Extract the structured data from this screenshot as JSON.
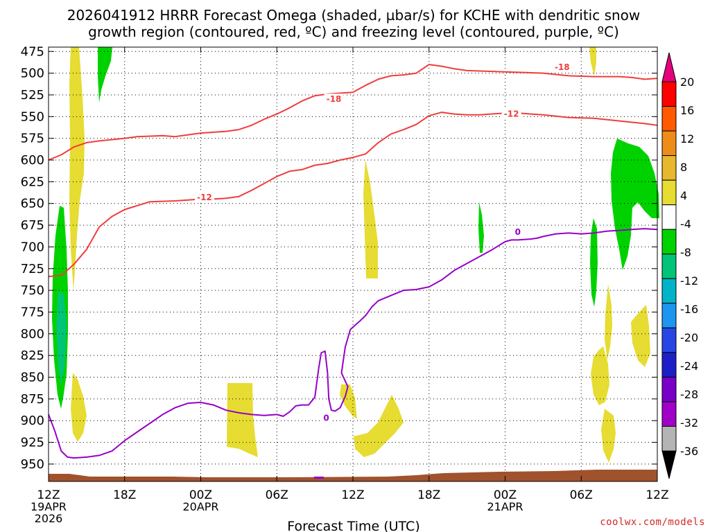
{
  "chart_data": {
    "type": "heatmap",
    "title_line1": "2026041912 HRRR Forecast Omega (shaded, µbar/s) for KCHE with dendritic snow",
    "title_line2": "growth region (contoured, red, ºC) and freezing level (contoured, purple, ºC)",
    "xlabel": "Forecast Time (UTC)",
    "credit": "coolwx.com/models",
    "x_range_hours": [
      0,
      48
    ],
    "y_range_hpa": [
      470,
      970
    ],
    "grid": true,
    "y_ticks": [
      475,
      500,
      525,
      550,
      575,
      600,
      625,
      650,
      675,
      700,
      725,
      750,
      775,
      800,
      825,
      850,
      875,
      900,
      925,
      950
    ],
    "y_tick_labels": [
      "475",
      "500",
      "525",
      "550",
      "575",
      "600",
      "625",
      "650",
      "675",
      "700",
      "725",
      "750",
      "775",
      "800",
      "825",
      "850",
      "875",
      "900",
      "925",
      "950"
    ],
    "x_ticks": [
      {
        "hour": 0,
        "label": "12Z",
        "sub1": "19APR",
        "sub2": "2026"
      },
      {
        "hour": 6,
        "label": "18Z",
        "sub1": "",
        "sub2": ""
      },
      {
        "hour": 12,
        "label": "00Z",
        "sub1": "20APR",
        "sub2": ""
      },
      {
        "hour": 18,
        "label": "06Z",
        "sub1": "",
        "sub2": ""
      },
      {
        "hour": 24,
        "label": "12Z",
        "sub1": "",
        "sub2": ""
      },
      {
        "hour": 30,
        "label": "18Z",
        "sub1": "",
        "sub2": ""
      },
      {
        "hour": 36,
        "label": "00Z",
        "sub1": "21APR",
        "sub2": ""
      },
      {
        "hour": 42,
        "label": "06Z",
        "sub1": "",
        "sub2": ""
      },
      {
        "hour": 48,
        "label": "12Z",
        "sub1": "",
        "sub2": ""
      }
    ],
    "colorbar": {
      "labels": [
        "20",
        "16",
        "12",
        "8",
        "4",
        "-4",
        "-8",
        "-12",
        "-16",
        "-20",
        "-24",
        "-28",
        "-32",
        "-36"
      ],
      "colors": [
        "#ff0000",
        "#ff5a00",
        "#ee8c1a",
        "#e8b82c",
        "#e6dc32",
        "#ffffff",
        "#00d200",
        "#00c478",
        "#00b4c8",
        "#1e96f0",
        "#2846e6",
        "#1e1ec8",
        "#7800c8",
        "#a000c8",
        "#b4b4b4"
      ],
      "top_color": "#e6007a",
      "bottom_color": "#000000"
    },
    "colors": {
      "dgz": "#f03c3c",
      "freezing": "#9600c8",
      "green": "#00d200",
      "teal": "#00c478",
      "yellow": "#e6dc32",
      "terrain": "#a0522d"
    },
    "contour_labels": [
      {
        "text": "-18",
        "hour": 22.5,
        "hpa": 530
      },
      {
        "text": "-18",
        "hour": 40.5,
        "hpa": 493
      },
      {
        "text": "-12",
        "hour": 12.3,
        "hpa": 643
      },
      {
        "text": "-12",
        "hour": 36.5,
        "hpa": 547
      },
      {
        "text": "0",
        "hour": 37.0,
        "hpa": 683
      },
      {
        "text": "0",
        "hour": 21.9,
        "hpa": 897
      }
    ],
    "series": [
      {
        "name": "-18",
        "color": "#f03c3c",
        "points": [
          [
            0,
            600
          ],
          [
            1,
            594
          ],
          [
            2,
            585
          ],
          [
            3,
            580
          ],
          [
            4,
            578
          ],
          [
            6,
            575
          ],
          [
            7,
            573
          ],
          [
            9,
            572
          ],
          [
            10,
            573
          ],
          [
            12,
            569
          ],
          [
            14,
            567
          ],
          [
            15,
            565
          ],
          [
            16,
            560
          ],
          [
            17,
            553
          ],
          [
            18,
            547
          ],
          [
            19,
            540
          ],
          [
            20,
            532
          ],
          [
            21,
            526
          ],
          [
            22,
            524
          ],
          [
            24,
            522
          ],
          [
            25,
            514
          ],
          [
            26,
            507
          ],
          [
            27,
            503
          ],
          [
            28,
            502
          ],
          [
            29,
            500
          ],
          [
            30,
            490
          ],
          [
            31,
            492
          ],
          [
            32,
            495
          ],
          [
            33,
            497
          ],
          [
            35,
            498
          ],
          [
            37,
            499
          ],
          [
            39,
            500
          ],
          [
            41,
            503
          ],
          [
            43,
            504
          ],
          [
            45,
            504
          ],
          [
            46,
            505
          ],
          [
            47,
            507
          ],
          [
            48,
            506
          ]
        ]
      },
      {
        "name": "-12",
        "color": "#f03c3c",
        "points": [
          [
            0,
            734
          ],
          [
            1,
            733
          ],
          [
            2,
            720
          ],
          [
            3,
            703
          ],
          [
            3.5,
            690
          ],
          [
            4,
            677
          ],
          [
            5,
            665
          ],
          [
            6,
            657
          ],
          [
            8,
            648
          ],
          [
            10,
            647
          ],
          [
            11,
            646
          ],
          [
            12,
            645
          ],
          [
            13,
            645
          ],
          [
            14,
            644
          ],
          [
            15,
            642
          ],
          [
            16,
            635
          ],
          [
            17,
            627
          ],
          [
            18,
            619
          ],
          [
            19,
            613
          ],
          [
            20,
            611
          ],
          [
            21,
            606
          ],
          [
            22,
            604
          ],
          [
            23,
            600
          ],
          [
            24,
            597
          ],
          [
            25,
            593
          ],
          [
            26,
            580
          ],
          [
            27,
            570
          ],
          [
            28,
            565
          ],
          [
            29,
            559
          ],
          [
            30,
            549
          ],
          [
            31,
            545
          ],
          [
            32,
            547
          ],
          [
            33,
            548
          ],
          [
            34,
            548
          ],
          [
            36,
            546
          ],
          [
            37,
            546
          ],
          [
            39,
            548
          ],
          [
            41,
            551
          ],
          [
            43,
            552
          ],
          [
            45,
            555
          ],
          [
            47,
            558
          ],
          [
            48,
            560
          ]
        ]
      },
      {
        "name": "0",
        "color": "#9600c8",
        "points": [
          [
            0,
            893
          ],
          [
            0.5,
            912
          ],
          [
            1,
            935
          ],
          [
            1.5,
            942
          ],
          [
            2,
            943
          ],
          [
            3,
            942
          ],
          [
            4,
            940
          ],
          [
            5,
            935
          ],
          [
            6,
            923
          ],
          [
            7,
            913
          ],
          [
            8,
            903
          ],
          [
            9,
            893
          ],
          [
            10,
            885
          ],
          [
            11,
            880
          ],
          [
            12,
            879
          ],
          [
            13,
            882
          ],
          [
            14,
            888
          ],
          [
            15,
            891
          ],
          [
            16,
            893
          ],
          [
            17,
            894
          ],
          [
            18,
            893
          ],
          [
            18.5,
            895
          ],
          [
            19,
            890
          ],
          [
            19.5,
            883
          ],
          [
            20,
            882
          ],
          [
            20.5,
            882
          ],
          [
            21,
            873
          ],
          [
            21.3,
            840
          ],
          [
            21.5,
            822
          ],
          [
            21.8,
            820
          ],
          [
            22,
            845
          ],
          [
            22.1,
            875
          ],
          [
            22.3,
            888
          ],
          [
            22.6,
            889
          ],
          [
            23,
            885
          ],
          [
            23.4,
            872
          ],
          [
            23.6,
            861
          ],
          [
            23.1,
            845
          ],
          [
            23.4,
            815
          ],
          [
            23.8,
            795
          ],
          [
            24.5,
            786
          ],
          [
            25,
            779
          ],
          [
            25.5,
            769
          ],
          [
            26,
            762
          ],
          [
            27,
            756
          ],
          [
            28,
            750
          ],
          [
            29,
            749
          ],
          [
            30,
            746
          ],
          [
            31,
            738
          ],
          [
            32,
            727
          ],
          [
            33,
            719
          ],
          [
            34,
            711
          ],
          [
            35,
            703
          ],
          [
            36,
            694
          ],
          [
            36.5,
            692
          ],
          [
            37,
            692
          ],
          [
            38,
            691
          ],
          [
            38.5,
            690
          ],
          [
            39,
            688
          ],
          [
            40,
            685
          ],
          [
            41,
            684
          ],
          [
            42,
            685
          ],
          [
            43,
            684
          ],
          [
            44,
            682
          ],
          [
            45,
            681
          ],
          [
            46,
            680
          ],
          [
            47,
            679
          ],
          [
            48,
            680
          ]
        ]
      }
    ]
  }
}
